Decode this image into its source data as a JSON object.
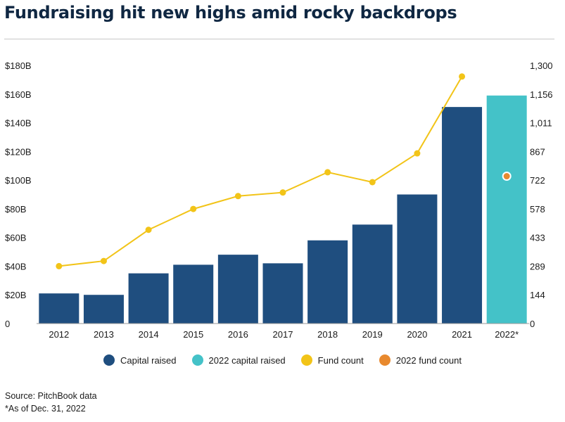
{
  "title": "Fundraising hit new highs amid rocky backdrops",
  "chart_data": {
    "type": "bar",
    "categories": [
      "2012",
      "2013",
      "2014",
      "2015",
      "2016",
      "2017",
      "2018",
      "2019",
      "2020",
      "2021",
      "2022*"
    ],
    "series": [
      {
        "name": "Capital raised",
        "kind": "bar",
        "color": "#1f4e7f",
        "values": [
          21,
          20,
          35,
          41,
          48,
          42,
          58,
          69,
          90,
          151,
          null
        ]
      },
      {
        "name": "2022 capital raised",
        "kind": "bar",
        "color": "#44c2c8",
        "values": [
          null,
          null,
          null,
          null,
          null,
          null,
          null,
          null,
          null,
          null,
          159
        ]
      },
      {
        "name": "Fund count",
        "kind": "line",
        "axis": "right",
        "color": "#f2c418",
        "values": [
          289,
          315,
          472,
          577,
          642,
          660,
          762,
          712,
          857,
          1244,
          null
        ]
      },
      {
        "name": "2022 fund count",
        "kind": "point",
        "axis": "right",
        "color": "#e8892e",
        "values": [
          null,
          null,
          null,
          null,
          null,
          null,
          null,
          null,
          null,
          null,
          742
        ]
      }
    ],
    "yleft": {
      "ylim": [
        0,
        180
      ],
      "ticks": [
        0,
        20,
        40,
        60,
        80,
        100,
        120,
        140,
        160,
        180
      ],
      "tick_labels": [
        "0",
        "$20B",
        "$40B",
        "$60B",
        "$80B",
        "$100B",
        "$120B",
        "$140B",
        "$160B",
        "$180B"
      ]
    },
    "yright": {
      "ylim": [
        0,
        1300
      ],
      "tick_labels": [
        "0",
        "144",
        "289",
        "433",
        "578",
        "722",
        "867",
        "1,011",
        "1,156",
        "1,300"
      ]
    },
    "grid": false,
    "legend_position": "bottom"
  },
  "legend": [
    {
      "label": "Capital raised",
      "color": "#1f4e7f"
    },
    {
      "label": "2022 capital raised",
      "color": "#44c2c8"
    },
    {
      "label": "Fund count",
      "color": "#f2c418"
    },
    {
      "label": "2022 fund count",
      "color": "#e8892e"
    }
  ],
  "notes": {
    "source": "Source: PitchBook data",
    "footnote": "*As of Dec. 31, 2022"
  }
}
